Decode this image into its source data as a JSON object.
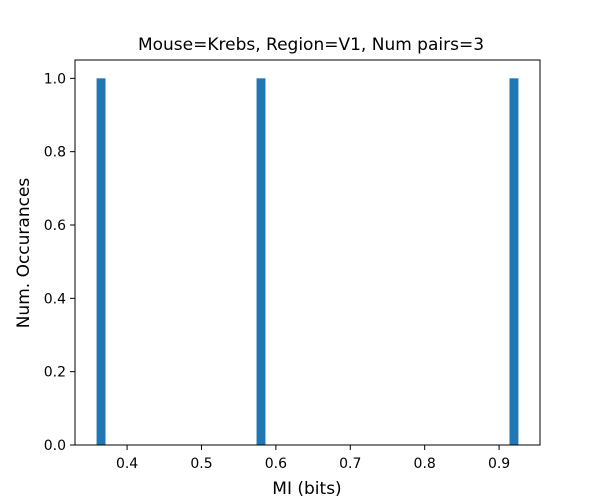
{
  "chart_data": {
    "type": "bar",
    "title": "Mouse=Krebs, Region=V1, Num pairs=3",
    "xlabel": "MI (bits)",
    "ylabel": "Num. Occurances",
    "xlim": [
      0.33,
      0.955
    ],
    "ylim": [
      0,
      1.05
    ],
    "grid": false,
    "bar_color": "#1f77b4",
    "bar_width": 0.012,
    "x": [
      0.365,
      0.58,
      0.92
    ],
    "values": [
      1,
      1,
      1
    ],
    "xticks": [
      0.4,
      0.5,
      0.6,
      0.7,
      0.8,
      0.9
    ],
    "xtick_labels": [
      "0.4",
      "0.5",
      "0.6",
      "0.7",
      "0.8",
      "0.9"
    ],
    "yticks": [
      0.0,
      0.2,
      0.4,
      0.6,
      0.8,
      1.0
    ],
    "ytick_labels": [
      "0.0",
      "0.2",
      "0.4",
      "0.6",
      "0.8",
      "1.0"
    ]
  }
}
